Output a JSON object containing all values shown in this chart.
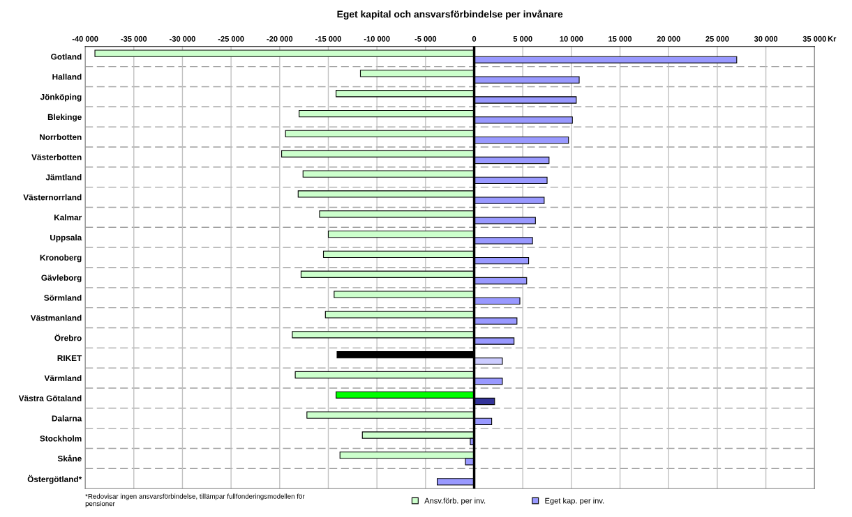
{
  "chart_data": {
    "type": "bar",
    "orientation": "horizontal",
    "title": "Eget kapital och ansvarsförbindelse per invånare",
    "xlabel": "Kr",
    "categories": [
      "Gotland",
      "Halland",
      "Jönköping",
      "Blekinge",
      "Norrbotten",
      "Västerbotten",
      "Jämtland",
      "Västernorrland",
      "Kalmar",
      "Uppsala",
      "Kronoberg",
      "Gävleborg",
      "Sörmland",
      "Västmanland",
      "Örebro",
      "RIKET",
      "Värmland",
      "Västra Götaland",
      "Dalarna",
      "Stockholm",
      "Skåne",
      "Östergötland*"
    ],
    "series": [
      {
        "name": "Ansv.förb. per inv.",
        "color": "#ccffcc",
        "values": [
          -39000,
          -11700,
          -14200,
          -18000,
          -19400,
          -19800,
          -17600,
          -18100,
          -15900,
          -15000,
          -15500,
          -17800,
          -14400,
          -15300,
          -18700,
          -14100,
          -18400,
          -14200,
          -17200,
          -11500,
          -13800,
          null
        ],
        "colors": [
          "#ccffcc",
          "#ccffcc",
          "#ccffcc",
          "#ccffcc",
          "#ccffcc",
          "#ccffcc",
          "#ccffcc",
          "#ccffcc",
          "#ccffcc",
          "#ccffcc",
          "#ccffcc",
          "#ccffcc",
          "#ccffcc",
          "#ccffcc",
          "#ccffcc",
          "#000000",
          "#ccffcc",
          "#00ff00",
          "#ccffcc",
          "#ccffcc",
          "#ccffcc",
          "#ccffcc"
        ]
      },
      {
        "name": "Eget kap. per inv.",
        "color": "#9999ff",
        "values": [
          27000,
          10800,
          10500,
          10100,
          9700,
          7700,
          7500,
          7200,
          6300,
          6000,
          5600,
          5400,
          4700,
          4400,
          4100,
          2900,
          2900,
          2100,
          1800,
          -400,
          -900,
          -3800
        ],
        "colors": [
          "#9999ff",
          "#9999ff",
          "#9999ff",
          "#9999ff",
          "#9999ff",
          "#9999ff",
          "#9999ff",
          "#9999ff",
          "#9999ff",
          "#9999ff",
          "#9999ff",
          "#9999ff",
          "#9999ff",
          "#9999ff",
          "#9999ff",
          "#ccccff",
          "#9999ff",
          "#333399",
          "#9999ff",
          "#9999ff",
          "#9999ff",
          "#9999ff"
        ]
      }
    ],
    "xlim": [
      -40000,
      35000
    ],
    "xticks": [
      {
        "value": -40000,
        "label": "-40 000"
      },
      {
        "value": -35000,
        "label": "-35 000"
      },
      {
        "value": -30000,
        "label": "-30 000"
      },
      {
        "value": -25000,
        "label": "-25 000"
      },
      {
        "value": -20000,
        "label": "-20 000"
      },
      {
        "value": -15000,
        "label": "-15 000"
      },
      {
        "value": -10000,
        "label": "-10 000"
      },
      {
        "value": -5000,
        "label": "-5 000"
      },
      0,
      {
        "value": 5000,
        "label": "5 000"
      },
      {
        "value": 10000,
        "label": "10 000"
      },
      {
        "value": 15000,
        "label": "15 000"
      },
      {
        "value": 20000,
        "label": "20 000"
      },
      {
        "value": 25000,
        "label": "25 000"
      },
      {
        "value": 30000,
        "label": "30 000"
      },
      {
        "value": 35000,
        "label": "35 000"
      }
    ],
    "grid": true,
    "legend": "bottom",
    "annotations": [
      "*Redovisar ingen ansvarsförbindelse, tillämpar fullfonderingsmodellen för pensioner"
    ]
  }
}
